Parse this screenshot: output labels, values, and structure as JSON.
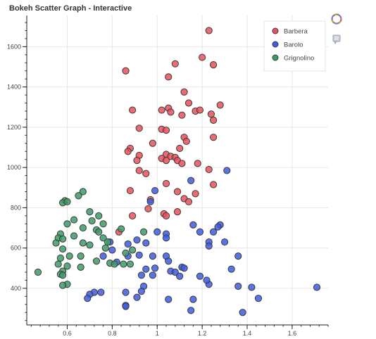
{
  "chart_data": {
    "type": "scatter",
    "title": "Bokeh Scatter Graph - Interactive",
    "xlabel": "",
    "ylabel": "",
    "xlim": [
      0.42,
      1.76
    ],
    "ylim": [
      218,
      1755
    ],
    "x_ticks": [
      0.6,
      0.8,
      1,
      1.2,
      1.4,
      1.6
    ],
    "y_ticks": [
      400,
      600,
      800,
      1000,
      1200,
      1400,
      1600
    ],
    "grid": true,
    "legend_position": "top-right",
    "series": [
      {
        "name": "Barbera",
        "color": "#e8505b",
        "points": [
          [
            1.23,
            1680
          ],
          [
            1.2,
            1547
          ],
          [
            1.08,
            1515
          ],
          [
            1.25,
            1510
          ],
          [
            0.86,
            1480
          ],
          [
            1.05,
            1450
          ],
          [
            1.12,
            1375
          ],
          [
            1.28,
            1310
          ],
          [
            1.14,
            1320
          ],
          [
            1.05,
            1295
          ],
          [
            0.89,
            1285
          ],
          [
            1.02,
            1285
          ],
          [
            1.06,
            1275
          ],
          [
            1.17,
            1280
          ],
          [
            1.19,
            1285
          ],
          [
            1.24,
            1265
          ],
          [
            1.11,
            1260
          ],
          [
            1.25,
            1235
          ],
          [
            0.92,
            1195
          ],
          [
            1.02,
            1190
          ],
          [
            1.04,
            1185
          ],
          [
            0.98,
            1120
          ],
          [
            1.12,
            1150
          ],
          [
            1.25,
            1150
          ],
          [
            1.13,
            1130
          ],
          [
            1.1,
            1095
          ],
          [
            0.88,
            1095
          ],
          [
            0.87,
            1080
          ],
          [
            0.92,
            1060
          ],
          [
            1.04,
            1065
          ],
          [
            1.06,
            1055
          ],
          [
            1.08,
            1050
          ],
          [
            1.02,
            1045
          ],
          [
            1.04,
            1035
          ],
          [
            1.09,
            1035
          ],
          [
            1.11,
            1020
          ],
          [
            0.91,
            1035
          ],
          [
            1.18,
            1020
          ],
          [
            0.92,
            985
          ],
          [
            0.95,
            970
          ],
          [
            1.23,
            990
          ],
          [
            1.04,
            920
          ],
          [
            1.25,
            915
          ],
          [
            0.88,
            885
          ],
          [
            1.09,
            880
          ],
          [
            1.17,
            870
          ],
          [
            1.12,
            845
          ],
          [
            0.97,
            840
          ],
          [
            1.14,
            830
          ],
          [
            0.96,
            795
          ],
          [
            1.09,
            780
          ],
          [
            0.89,
            760
          ],
          [
            1.03,
            770
          ],
          [
            1.04,
            760
          ],
          [
            0.83,
            680
          ]
        ]
      },
      {
        "name": "Barolo",
        "color": "#3d5ce0",
        "points": [
          [
            1.31,
            985
          ],
          [
            1.15,
            935
          ],
          [
            0.99,
            885
          ],
          [
            0.97,
            830
          ],
          [
            1.16,
            715
          ],
          [
            1.28,
            715
          ],
          [
            1.27,
            705
          ],
          [
            1.25,
            680
          ],
          [
            1.0,
            680
          ],
          [
            1.04,
            670
          ],
          [
            1.19,
            680
          ],
          [
            1.3,
            630
          ],
          [
            1.23,
            630
          ],
          [
            1.04,
            650
          ],
          [
            0.91,
            640
          ],
          [
            0.95,
            625
          ],
          [
            0.87,
            620
          ],
          [
            0.79,
            630
          ],
          [
            1.23,
            610
          ],
          [
            0.8,
            590
          ],
          [
            0.92,
            565
          ],
          [
            0.87,
            560
          ],
          [
            0.76,
            560
          ],
          [
            0.98,
            560
          ],
          [
            1.04,
            560
          ],
          [
            1.36,
            560
          ],
          [
            1.05,
            535
          ],
          [
            0.82,
            530
          ],
          [
            0.95,
            495
          ],
          [
            0.99,
            500
          ],
          [
            1.06,
            485
          ],
          [
            1.11,
            505
          ],
          [
            1.12,
            500
          ],
          [
            1.33,
            495
          ],
          [
            1.08,
            480
          ],
          [
            0.93,
            465
          ],
          [
            1.1,
            460
          ],
          [
            1.19,
            460
          ],
          [
            0.98,
            465
          ],
          [
            1.23,
            420
          ],
          [
            1.22,
            440
          ],
          [
            1.36,
            410
          ],
          [
            1.42,
            405
          ],
          [
            1.71,
            405
          ],
          [
            0.94,
            410
          ],
          [
            0.86,
            380
          ],
          [
            0.93,
            385
          ],
          [
            0.72,
            380
          ],
          [
            0.75,
            380
          ],
          [
            0.7,
            370
          ],
          [
            0.91,
            355
          ],
          [
            0.69,
            350
          ],
          [
            1.45,
            350
          ],
          [
            1.05,
            345
          ],
          [
            1.16,
            345
          ],
          [
            0.86,
            315
          ],
          [
            0.86,
            310
          ],
          [
            1.15,
            290
          ],
          [
            1.38,
            280
          ]
        ]
      },
      {
        "name": "Grignolino",
        "color": "#3e9b68",
        "points": [
          [
            0.67,
            880
          ],
          [
            0.65,
            860
          ],
          [
            0.59,
            835
          ],
          [
            0.58,
            825
          ],
          [
            0.6,
            830
          ],
          [
            0.7,
            780
          ],
          [
            0.74,
            760
          ],
          [
            0.63,
            740
          ],
          [
            0.71,
            735
          ],
          [
            0.6,
            720
          ],
          [
            0.76,
            720
          ],
          [
            0.67,
            700
          ],
          [
            0.73,
            690
          ],
          [
            0.84,
            695
          ],
          [
            0.74,
            680
          ],
          [
            0.57,
            670
          ],
          [
            0.94,
            680
          ],
          [
            0.56,
            650
          ],
          [
            0.63,
            660
          ],
          [
            0.58,
            645
          ],
          [
            0.76,
            650
          ],
          [
            0.78,
            630
          ],
          [
            0.55,
            625
          ],
          [
            0.67,
            625
          ],
          [
            0.7,
            615
          ],
          [
            0.77,
            600
          ],
          [
            0.58,
            595
          ],
          [
            0.89,
            590
          ],
          [
            0.86,
            575
          ],
          [
            0.61,
            560
          ],
          [
            0.66,
            560
          ],
          [
            0.57,
            550
          ],
          [
            0.73,
            535
          ],
          [
            0.79,
            525
          ],
          [
            0.81,
            520
          ],
          [
            0.56,
            520
          ],
          [
            0.6,
            510
          ],
          [
            0.85,
            520
          ],
          [
            0.88,
            520
          ],
          [
            0.66,
            505
          ],
          [
            0.58,
            485
          ],
          [
            0.47,
            480
          ],
          [
            0.57,
            470
          ],
          [
            0.58,
            465
          ],
          [
            0.6,
            420
          ],
          [
            0.58,
            415
          ]
        ]
      }
    ]
  },
  "legend": {
    "items": [
      {
        "label": "Barbera",
        "color": "#e8505b"
      },
      {
        "label": "Barolo",
        "color": "#3d5ce0"
      },
      {
        "label": "Grignolino",
        "color": "#3e9b68"
      }
    ]
  },
  "toolbar": {
    "items": [
      {
        "icon": "bokeh-logo-icon"
      },
      {
        "icon": "hover-tooltip-icon"
      }
    ]
  }
}
